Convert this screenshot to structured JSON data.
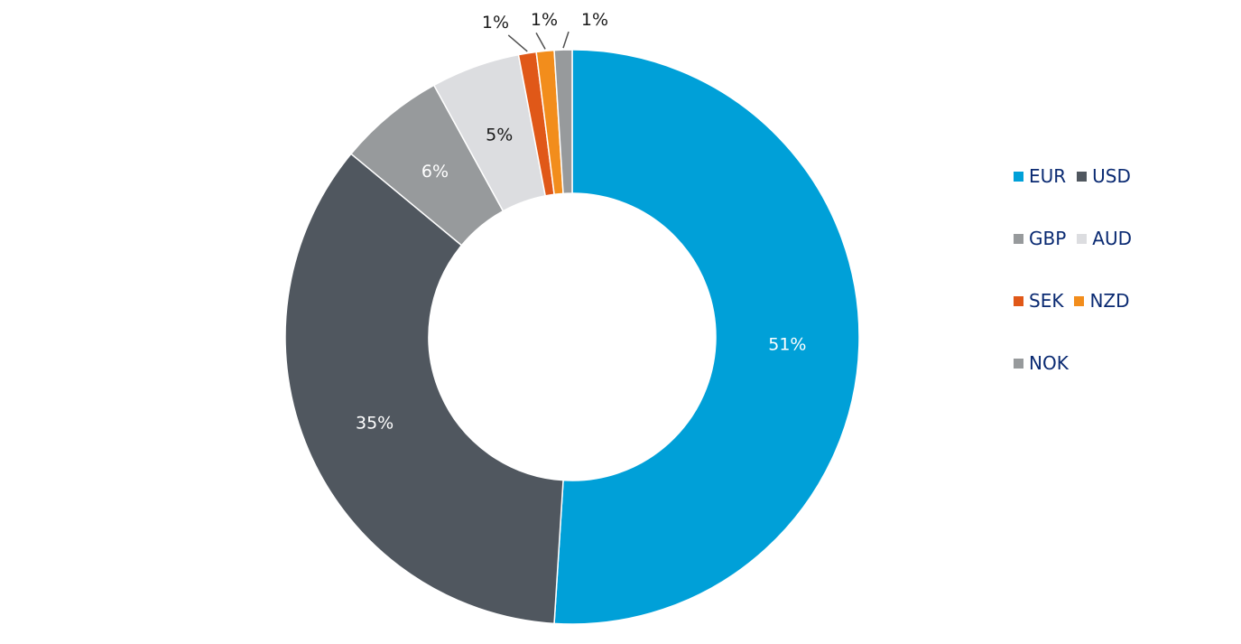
{
  "chart_data": {
    "type": "pie",
    "donut": true,
    "title": "",
    "categories": [
      "EUR",
      "USD",
      "GBP",
      "AUD",
      "SEK",
      "NZD",
      "NOK"
    ],
    "values": [
      51,
      35,
      6,
      5,
      1,
      1,
      1
    ],
    "labels": [
      "51%",
      "35%",
      "6%",
      "5%",
      "1%",
      "1%",
      "1%"
    ],
    "colors": [
      "#00a0d8",
      "#50575f",
      "#979a9c",
      "#dcdde0",
      "#e05818",
      "#f28d1c",
      "#979a9c"
    ],
    "label_colors": [
      "#ffffff",
      "#ffffff",
      "#ffffff",
      "#1a1a1a",
      "#1a1a1a",
      "#1a1a1a",
      "#1a1a1a"
    ],
    "legend_position": "right",
    "legend_text_color": "#0a2a72"
  }
}
